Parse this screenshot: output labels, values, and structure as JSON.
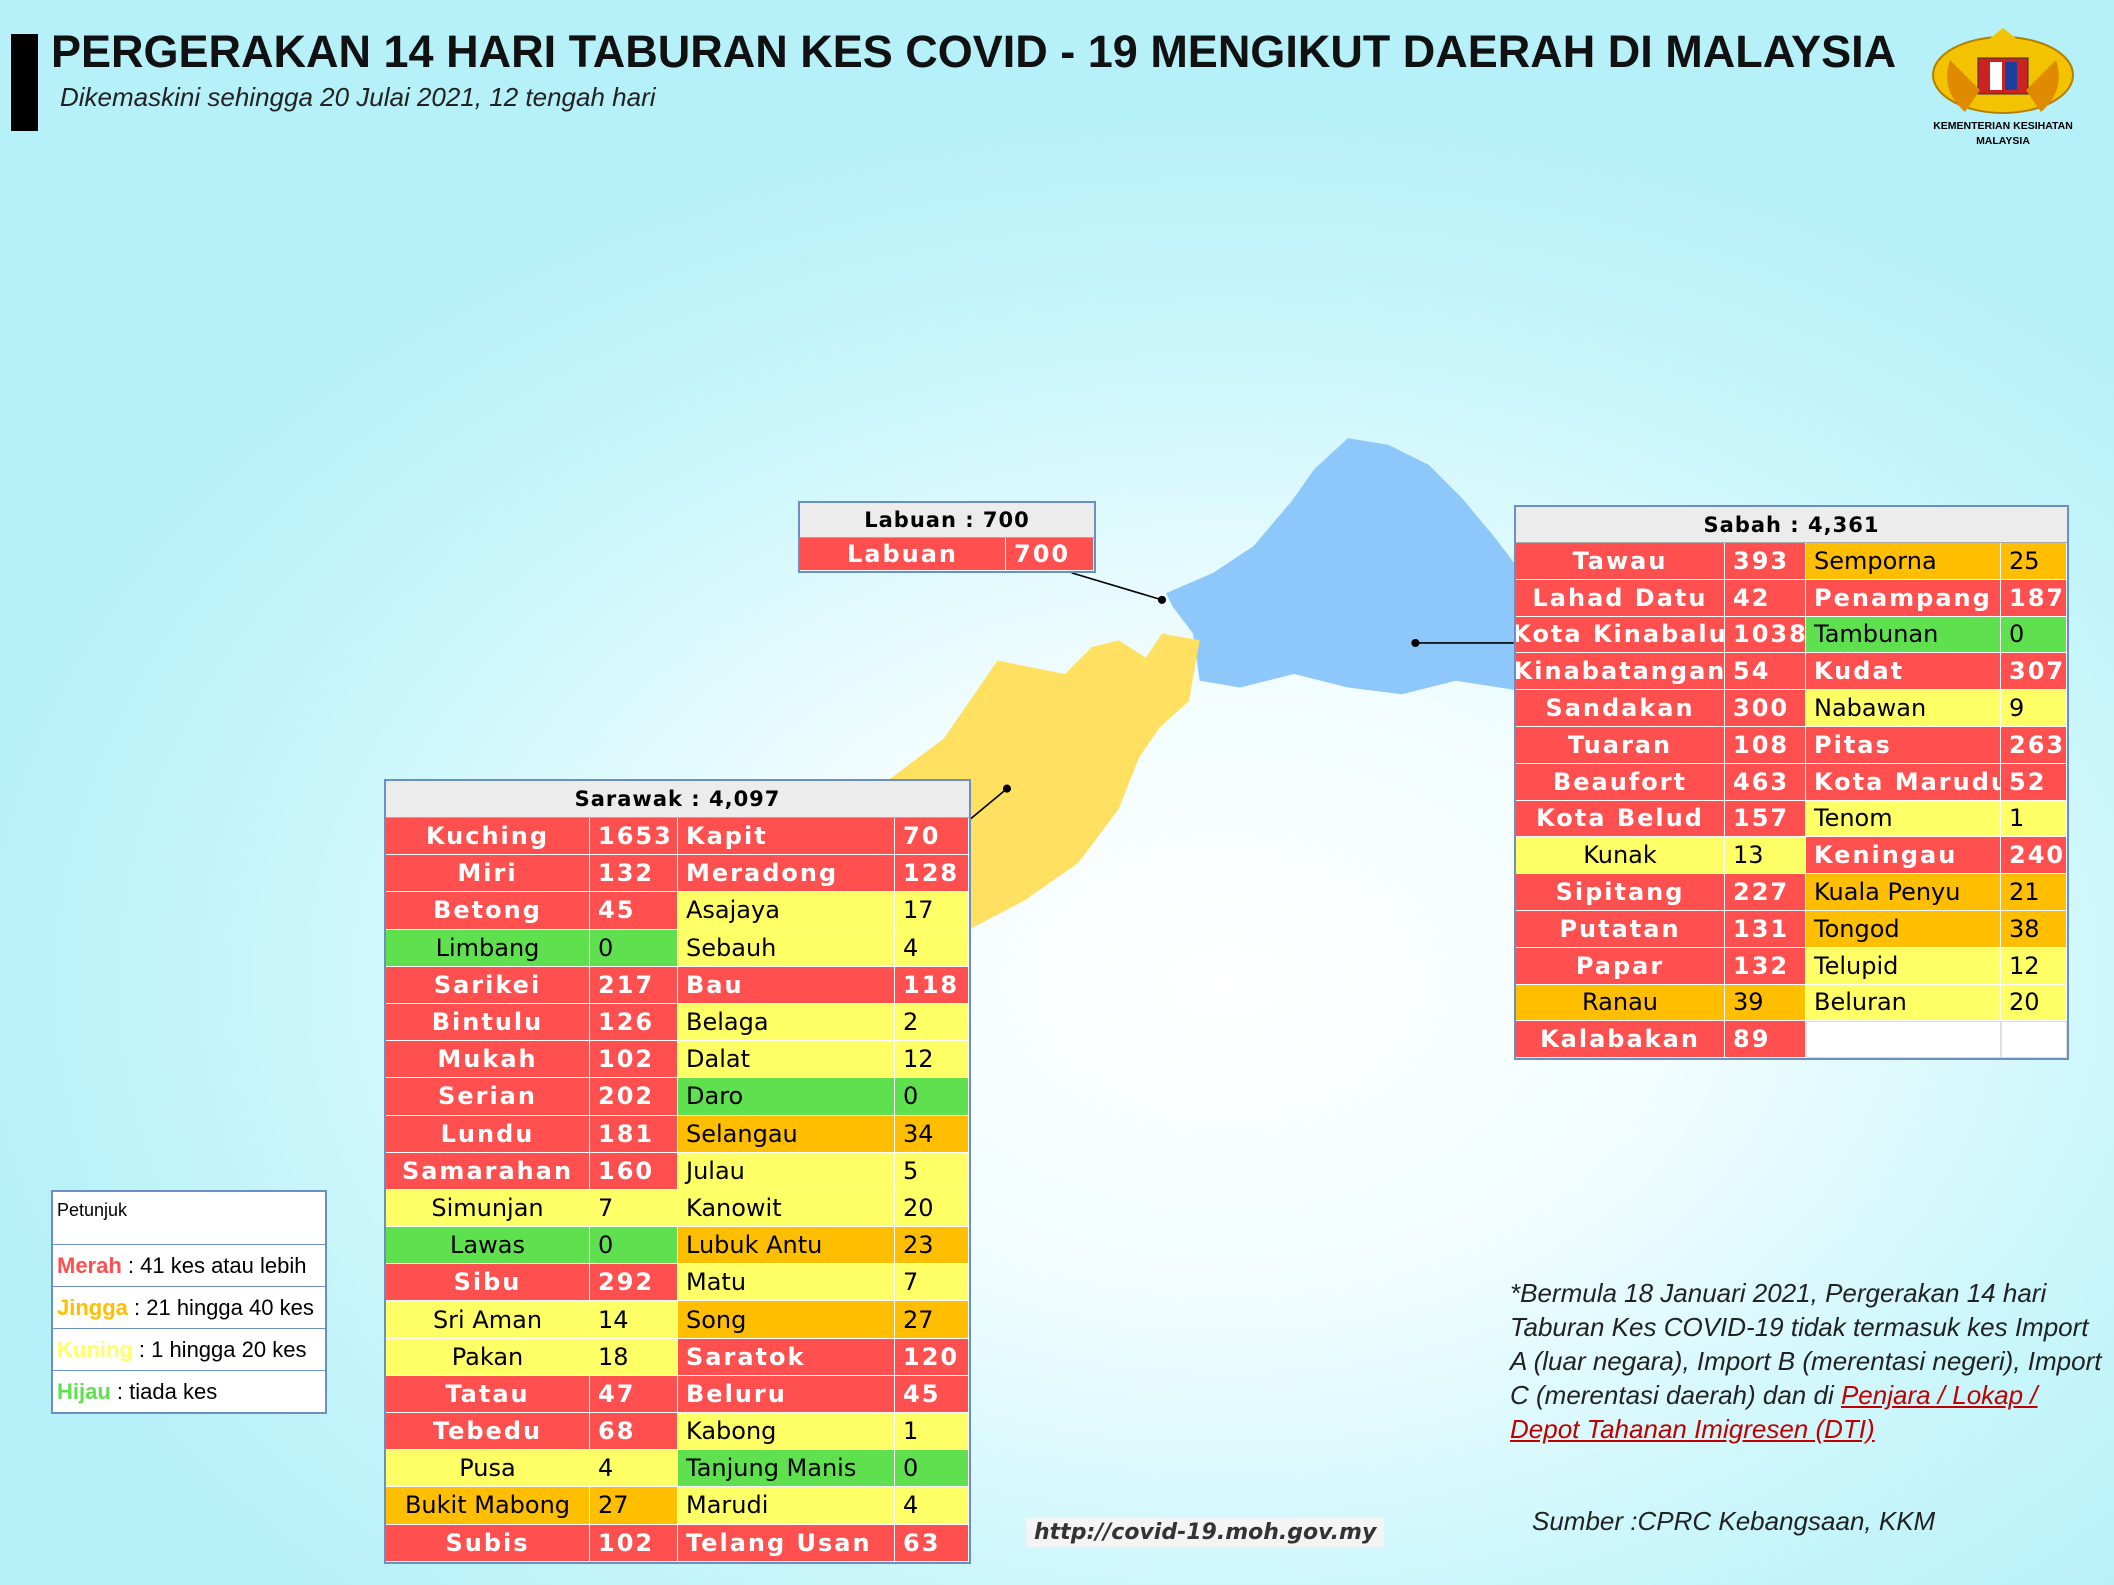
{
  "header": {
    "title": "PERGERAKAN 14 HARI TABURAN KES COVID - 19 MENGIKUT DAERAH DI MALAYSIA",
    "subtitle": "Dikemaskini sehingga 20 Julai 2021, 12 tengah hari",
    "logo_lines": [
      "KEMENTERIAN KESIHATAN",
      "MALAYSIA"
    ]
  },
  "tables": [
    {
      "title": "Labuan : 700",
      "rows": [
        [
          "Labuan",
          700
        ]
      ]
    },
    {
      "title": "Sabah : 4,361",
      "rows": [
        [
          "Tawau",
          393,
          "Semporna",
          25
        ],
        [
          "Lahad Datu",
          42,
          "Penampang",
          187
        ],
        [
          "Kota Kinabalu",
          1038,
          "Tambunan",
          0
        ],
        [
          "Kinabatangan",
          54,
          "Kudat",
          307
        ],
        [
          "Sandakan",
          300,
          "Nabawan",
          9
        ],
        [
          "Tuaran",
          108,
          "Pitas",
          263
        ],
        [
          "Beaufort",
          463,
          "Kota Marudu",
          52
        ],
        [
          "Kota Belud",
          157,
          "Tenom",
          1
        ],
        [
          "Kunak",
          13,
          "Keningau",
          240
        ],
        [
          "Sipitang",
          227,
          "Kuala Penyu",
          21
        ],
        [
          "Putatan",
          131,
          "Tongod",
          38
        ],
        [
          "Papar",
          132,
          "Telupid",
          12
        ],
        [
          "Ranau",
          39,
          "Beluran",
          20
        ],
        [
          "Kalabakan",
          89
        ]
      ]
    },
    {
      "title": "Sarawak : 4,097",
      "rows": [
        [
          "Kuching",
          1653,
          "Kapit",
          70
        ],
        [
          "Miri",
          132,
          "Meradong",
          128
        ],
        [
          "Betong",
          45,
          "Asajaya",
          17
        ],
        [
          "Limbang",
          0,
          "Sebauh",
          4
        ],
        [
          "Sarikei",
          217,
          "Bau",
          118
        ],
        [
          "Bintulu",
          126,
          "Belaga",
          2
        ],
        [
          "Mukah",
          102,
          "Dalat",
          12
        ],
        [
          "Serian",
          202,
          "Daro",
          0
        ],
        [
          "Lundu",
          181,
          "Selangau",
          34
        ],
        [
          "Samarahan",
          160,
          "Julau",
          5
        ],
        [
          "Simunjan",
          7,
          "Kanowit",
          20
        ],
        [
          "Lawas",
          0,
          "Lubuk Antu",
          23
        ],
        [
          "Sibu",
          292,
          "Matu",
          7
        ],
        [
          "Sri Aman",
          14,
          "Song",
          27
        ],
        [
          "Pakan",
          18,
          "Saratok",
          120
        ],
        [
          "Tatau",
          47,
          "Beluru",
          45
        ],
        [
          "Tebedu",
          68,
          "Kabong",
          1
        ],
        [
          "Pusa",
          4,
          "Tanjung Manis",
          0
        ],
        [
          "Bukit Mabong",
          27,
          "Marudi",
          4
        ],
        [
          "Subis",
          102,
          "Telang Usan",
          63
        ]
      ]
    }
  ],
  "legend": {
    "title": "Petunjuk",
    "items": [
      {
        "term": "Merah",
        "text": " : 41 kes atau lebih",
        "min": 41,
        "color": "#ff4f4f"
      },
      {
        "term": "Jingga",
        "text": " : 21 hingga 40 kes",
        "min": 21,
        "color": "#ffbf00"
      },
      {
        "term": "Kuning",
        "text": " : 1 hingga 20 kes",
        "min": 1,
        "color": "#ffff66"
      },
      {
        "term": "Hijau",
        "text": " : tiada kes",
        "min": 0,
        "color": "#5fe04f"
      }
    ]
  },
  "footnote": {
    "text": "*Bermula 18 Januari 2021, Pergerakan 14 hari Taburan Kes COVID-19 tidak termasuk kes Import A (luar negara), Import B (merentasi negeri), Import C (merentasi daerah) dan di ",
    "link": "Penjara / Lokap / Depot Tahanan Imigresen (DTI)"
  },
  "source": "Sumber :CPRC Kebangsaan,  KKM",
  "url": "http://covid-19.moh.gov.my"
}
